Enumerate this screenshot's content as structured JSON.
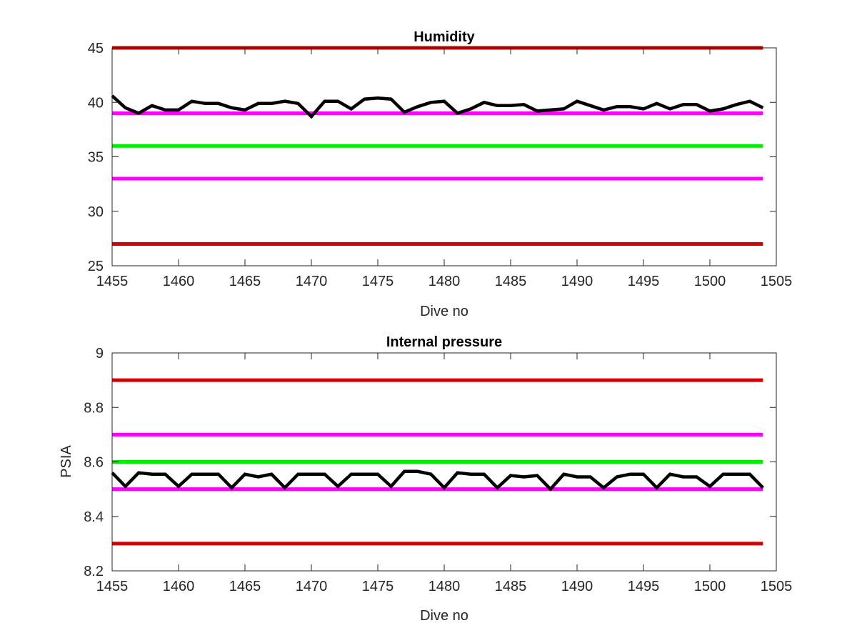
{
  "chart_data": [
    {
      "type": "line",
      "title": "Humidity",
      "xlabel": "Dive no",
      "ylabel": "",
      "xlim": [
        1455,
        1505
      ],
      "ylim": [
        25,
        45
      ],
      "grid": false,
      "x_ticks": [
        1455,
        1460,
        1465,
        1470,
        1475,
        1480,
        1485,
        1490,
        1495,
        1500,
        1505
      ],
      "y_ticks": [
        25,
        30,
        35,
        40,
        45
      ],
      "reference_lines": [
        {
          "y": 45,
          "color": "#d40000"
        },
        {
          "y": 39,
          "color": "#ff00ff"
        },
        {
          "y": 36,
          "color": "#00ee00"
        },
        {
          "y": 33,
          "color": "#ff00ff"
        },
        {
          "y": 27,
          "color": "#d40000"
        }
      ],
      "series": [
        {
          "color": "#000000",
          "x": [
            1455,
            1456,
            1457,
            1458,
            1459,
            1460,
            1461,
            1462,
            1463,
            1464,
            1465,
            1466,
            1467,
            1468,
            1469,
            1470,
            1471,
            1472,
            1473,
            1474,
            1475,
            1476,
            1477,
            1478,
            1479,
            1480,
            1481,
            1482,
            1483,
            1484,
            1485,
            1486,
            1487,
            1488,
            1489,
            1490,
            1491,
            1492,
            1493,
            1494,
            1495,
            1496,
            1497,
            1498,
            1499,
            1500,
            1501,
            1502,
            1503,
            1504
          ],
          "values": [
            40.6,
            39.5,
            39.0,
            39.7,
            39.3,
            39.3,
            40.1,
            39.9,
            39.9,
            39.5,
            39.3,
            39.9,
            39.9,
            40.1,
            39.9,
            38.7,
            40.1,
            40.1,
            39.4,
            40.3,
            40.4,
            40.3,
            39.1,
            39.6,
            40.0,
            40.1,
            39.0,
            39.4,
            40.0,
            39.7,
            39.7,
            39.8,
            39.2,
            39.3,
            39.4,
            40.1,
            39.7,
            39.3,
            39.6,
            39.6,
            39.4,
            39.9,
            39.4,
            39.8,
            39.8,
            39.2,
            39.4,
            39.8,
            40.1,
            39.5
          ]
        }
      ]
    },
    {
      "type": "line",
      "title": "Internal pressure",
      "xlabel": "Dive no",
      "ylabel": "PSIA",
      "xlim": [
        1455,
        1505
      ],
      "ylim": [
        8.2,
        9.0
      ],
      "grid": false,
      "x_ticks": [
        1455,
        1460,
        1465,
        1470,
        1475,
        1480,
        1485,
        1490,
        1495,
        1500,
        1505
      ],
      "y_ticks": [
        8.2,
        8.4,
        8.6,
        8.8,
        9.0
      ],
      "y_tick_labels": [
        "8.2",
        "8.4",
        "8.6",
        "8.8",
        "9"
      ],
      "reference_lines": [
        {
          "y": 8.9,
          "color": "#d40000"
        },
        {
          "y": 8.7,
          "color": "#ff00ff"
        },
        {
          "y": 8.6,
          "color": "#00ee00"
        },
        {
          "y": 8.5,
          "color": "#ff00ff"
        },
        {
          "y": 8.3,
          "color": "#d40000"
        }
      ],
      "series": [
        {
          "color": "#000000",
          "x": [
            1455,
            1456,
            1457,
            1458,
            1459,
            1460,
            1461,
            1462,
            1463,
            1464,
            1465,
            1466,
            1467,
            1468,
            1469,
            1470,
            1471,
            1472,
            1473,
            1474,
            1475,
            1476,
            1477,
            1478,
            1479,
            1480,
            1481,
            1482,
            1483,
            1484,
            1485,
            1486,
            1487,
            1488,
            1489,
            1490,
            1491,
            1492,
            1493,
            1494,
            1495,
            1496,
            1497,
            1498,
            1499,
            1500,
            1501,
            1502,
            1503,
            1504
          ],
          "values": [
            8.56,
            8.51,
            8.56,
            8.555,
            8.555,
            8.51,
            8.555,
            8.555,
            8.555,
            8.505,
            8.555,
            8.545,
            8.555,
            8.505,
            8.555,
            8.555,
            8.555,
            8.51,
            8.555,
            8.555,
            8.555,
            8.51,
            8.565,
            8.565,
            8.555,
            8.505,
            8.56,
            8.555,
            8.555,
            8.505,
            8.55,
            8.545,
            8.55,
            8.5,
            8.555,
            8.545,
            8.545,
            8.505,
            8.545,
            8.555,
            8.555,
            8.505,
            8.555,
            8.545,
            8.545,
            8.51,
            8.555,
            8.555,
            8.555,
            8.505
          ]
        }
      ]
    }
  ]
}
